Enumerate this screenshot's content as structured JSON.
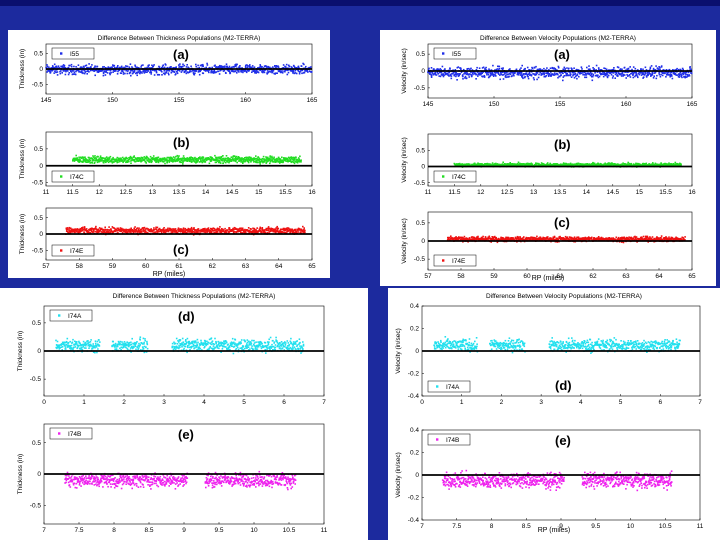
{
  "page": {
    "background": "#1c2a9e"
  },
  "panels": [
    {
      "title": "Difference Between Thickness Populations (M2-TERRA)",
      "xlabel": "",
      "subplots": [
        {
          "tag": "(a)",
          "legend": "I55",
          "color": "#1f2ee8",
          "ylabel": "Thickness (in)",
          "xlim": [
            145,
            165
          ],
          "ylim": [
            -0.8,
            0.8
          ],
          "ticks_x": [
            "145",
            "150",
            "155",
            "160",
            "165"
          ],
          "ticks_y": [
            "0.5",
            "0",
            "-0.5"
          ],
          "ytick_vals": [
            0.5,
            0,
            -0.5
          ],
          "data_x": [
            145,
            165
          ],
          "mean": -0.02,
          "spread": 0.28,
          "legend_pos": "top-left",
          "tag_pos": "top"
        },
        {
          "tag": "(b)",
          "legend": "I74C",
          "color": "#22dd22",
          "ylabel": "Thickness (in)",
          "xlim": [
            11,
            16
          ],
          "ylim": [
            -0.6,
            1.0
          ],
          "ticks_x": [
            "11",
            "11.5",
            "12",
            "12.5",
            "13",
            "13.5",
            "14",
            "14.5",
            "15",
            "15.5",
            "16"
          ],
          "ticks_y": [
            "0.5",
            "0",
            "-0.5"
          ],
          "ytick_vals": [
            0.5,
            0,
            -0.5
          ],
          "data_x": [
            11.5,
            15.8
          ],
          "mean": 0.18,
          "spread": 0.18,
          "legend_pos": "bottom-left",
          "tag_pos": "top"
        },
        {
          "tag": "(c)",
          "legend": "I74E",
          "color": "#ee1111",
          "ylabel": "Thickness (in)",
          "xlim": [
            57,
            65
          ],
          "ylim": [
            -0.8,
            0.8
          ],
          "ticks_x": [
            "57",
            "58",
            "59",
            "60",
            "61",
            "62",
            "63",
            "64",
            "65"
          ],
          "ticks_y": [
            "0.5",
            "0",
            "-0.5"
          ],
          "ytick_vals": [
            0.5,
            0,
            -0.5
          ],
          "data_x": [
            57.6,
            64.8
          ],
          "mean": 0.1,
          "spread": 0.18,
          "legend_pos": "bottom-left",
          "tag_pos": "bottom"
        }
      ],
      "bottom_xlabel": "RP (miles)"
    },
    {
      "title": "Difference Between Velocity Populations (M2-TERRA)",
      "subplots": [
        {
          "tag": "(a)",
          "legend": "I55",
          "color": "#1f2ee8",
          "ylabel": "Velocity (in/sec)",
          "xlim": [
            145,
            165
          ],
          "ylim": [
            -0.8,
            0.8
          ],
          "ticks_x": [
            "145",
            "150",
            "155",
            "160",
            "165"
          ],
          "ticks_y": [
            "0.5",
            "0",
            "-0.5"
          ],
          "ytick_vals": [
            0.5,
            0,
            -0.5
          ],
          "data_x": [
            145,
            165
          ],
          "mean": -0.05,
          "spread": 0.3,
          "legend_pos": "top-left",
          "tag_pos": "top"
        },
        {
          "tag": "(b)",
          "legend": "I74C",
          "color": "#22dd22",
          "ylabel": "Velocity (in/sec)",
          "xlim": [
            11,
            16
          ],
          "ylim": [
            -0.6,
            1.0
          ],
          "ticks_x": [
            "11",
            "11.5",
            "12",
            "12.5",
            "13",
            "13.5",
            "14",
            "14.5",
            "15",
            "15.5",
            "16"
          ],
          "ticks_y": [
            "0.5",
            "0",
            "-0.5"
          ],
          "ytick_vals": [
            0.5,
            0,
            -0.5
          ],
          "data_x": [
            11.5,
            15.8
          ],
          "mean": 0.05,
          "spread": 0.1,
          "legend_pos": "bottom-left",
          "tag_pos": "top"
        },
        {
          "tag": "(c)",
          "legend": "I74E",
          "color": "#ee1111",
          "ylabel": "Velocity (in/sec)",
          "xlim": [
            57,
            65
          ],
          "ylim": [
            -0.8,
            0.8
          ],
          "ticks_x": [
            "57",
            "58",
            "59",
            "60",
            "61",
            "62",
            "63",
            "64",
            "65"
          ],
          "ticks_y": [
            "0.5",
            "0",
            "-0.5"
          ],
          "ytick_vals": [
            0.5,
            0,
            -0.5
          ],
          "data_x": [
            57.6,
            64.8
          ],
          "mean": 0.05,
          "spread": 0.12,
          "legend_pos": "bottom-left",
          "tag_pos": "top"
        }
      ],
      "bottom_xlabel": "RP (miles)"
    },
    {
      "title": "Difference Between Thickness Populations (M2-TERRA)",
      "subplots": [
        {
          "tag": "(d)",
          "legend": "I74A",
          "color": "#22e0ee",
          "ylabel": "Thickness (in)",
          "xlim": [
            0,
            7
          ],
          "ylim": [
            -0.8,
            0.8
          ],
          "ticks_x": [
            "0",
            "1",
            "2",
            "3",
            "4",
            "5",
            "6",
            "7"
          ],
          "ticks_y": [
            "0.5",
            "0",
            "-0.5"
          ],
          "ytick_vals": [
            0.5,
            0,
            -0.5
          ],
          "data_x": [
            0.3,
            6.5
          ],
          "mean": 0.1,
          "spread": 0.2,
          "legend_pos": "top-left",
          "tag_pos": "top"
        },
        {
          "tag": "(e)",
          "legend": "I74B",
          "color": "#ee22ee",
          "ylabel": "Thickness (in)",
          "xlim": [
            7,
            11
          ],
          "ylim": [
            -0.8,
            0.8
          ],
          "ticks_x": [
            "7",
            "7.5",
            "8",
            "8.5",
            "9",
            "9.5",
            "10",
            "10.5",
            "11"
          ],
          "ticks_y": [
            "0.5",
            "0",
            "-0.5"
          ],
          "ytick_vals": [
            0.5,
            0,
            -0.5
          ],
          "data_x": [
            7.3,
            10.6
          ],
          "mean": -0.1,
          "spread": 0.2,
          "legend_pos": "top-left",
          "tag_pos": "top"
        }
      ],
      "bottom_xlabel": ""
    },
    {
      "title": "Difference Between Velocity Populations (M2-TERRA)",
      "subplots": [
        {
          "tag": "(d)",
          "legend": "I74A",
          "color": "#22e0ee",
          "ylabel": "Velocity (in/sec)",
          "xlim": [
            0,
            7
          ],
          "ylim": [
            -0.4,
            0.4
          ],
          "ticks_x": [
            "0",
            "1",
            "2",
            "3",
            "4",
            "5",
            "6",
            "7"
          ],
          "ticks_y": [
            "0.4",
            "0.2",
            "0",
            "-0.2",
            "-0.4"
          ],
          "ytick_vals": [
            0.4,
            0.2,
            0,
            -0.2,
            -0.4
          ],
          "data_x": [
            0.3,
            6.5
          ],
          "mean": 0.05,
          "spread": 0.1,
          "legend_pos": "bottom-left",
          "tag_pos": "bottom"
        },
        {
          "tag": "(e)",
          "legend": "I74B",
          "color": "#ee22ee",
          "ylabel": "Velocity (in/sec)",
          "xlim": [
            7,
            11
          ],
          "ylim": [
            -0.4,
            0.4
          ],
          "ticks_x": [
            "7",
            "7.5",
            "8",
            "8.5",
            "9",
            "9.5",
            "10",
            "10.5",
            "11"
          ],
          "ticks_y": [
            "0.4",
            "0.2",
            "0",
            "-0.2",
            "-0.4"
          ],
          "ytick_vals": [
            0.4,
            0.2,
            0,
            -0.2,
            -0.4
          ],
          "data_x": [
            7.3,
            10.6
          ],
          "mean": -0.05,
          "spread": 0.12,
          "legend_pos": "top-left",
          "tag_pos": "top"
        }
      ],
      "bottom_xlabel": "RP (miles)"
    }
  ],
  "chart_data": [
    {
      "type": "scatter",
      "title": "Difference Between Thickness Populations (M2-TERRA)",
      "series": [
        {
          "name": "I55",
          "x_range": [
            145,
            165
          ],
          "mean": -0.02
        },
        {
          "name": "I74C",
          "x_range": [
            11.5,
            15.8
          ],
          "mean": 0.18
        },
        {
          "name": "I74E",
          "x_range": [
            57.6,
            64.8
          ],
          "mean": 0.1
        }
      ],
      "xlabel": "RP (miles)",
      "ylabel": "Thickness (in)"
    },
    {
      "type": "scatter",
      "title": "Difference Between Velocity Populations (M2-TERRA)",
      "series": [
        {
          "name": "I55",
          "x_range": [
            145,
            165
          ],
          "mean": -0.05
        },
        {
          "name": "I74C",
          "x_range": [
            11.5,
            15.8
          ],
          "mean": 0.05
        },
        {
          "name": "I74E",
          "x_range": [
            57.6,
            64.8
          ],
          "mean": 0.05
        }
      ],
      "xlabel": "RP (miles)",
      "ylabel": "Velocity (in/sec)"
    },
    {
      "type": "scatter",
      "title": "Difference Between Thickness Populations (M2-TERRA)",
      "series": [
        {
          "name": "I74A",
          "x_range": [
            0.3,
            6.5
          ],
          "mean": 0.1
        },
        {
          "name": "I74B",
          "x_range": [
            7.3,
            10.6
          ],
          "mean": -0.1
        }
      ],
      "xlabel": "",
      "ylabel": "Thickness (in)"
    },
    {
      "type": "scatter",
      "title": "Difference Between Velocity Populations (M2-TERRA)",
      "series": [
        {
          "name": "I74A",
          "x_range": [
            0.3,
            6.5
          ],
          "mean": 0.05
        },
        {
          "name": "I74B",
          "x_range": [
            7.3,
            10.6
          ],
          "mean": -0.05
        }
      ],
      "xlabel": "RP (miles)",
      "ylabel": "Velocity (in/sec)"
    }
  ]
}
